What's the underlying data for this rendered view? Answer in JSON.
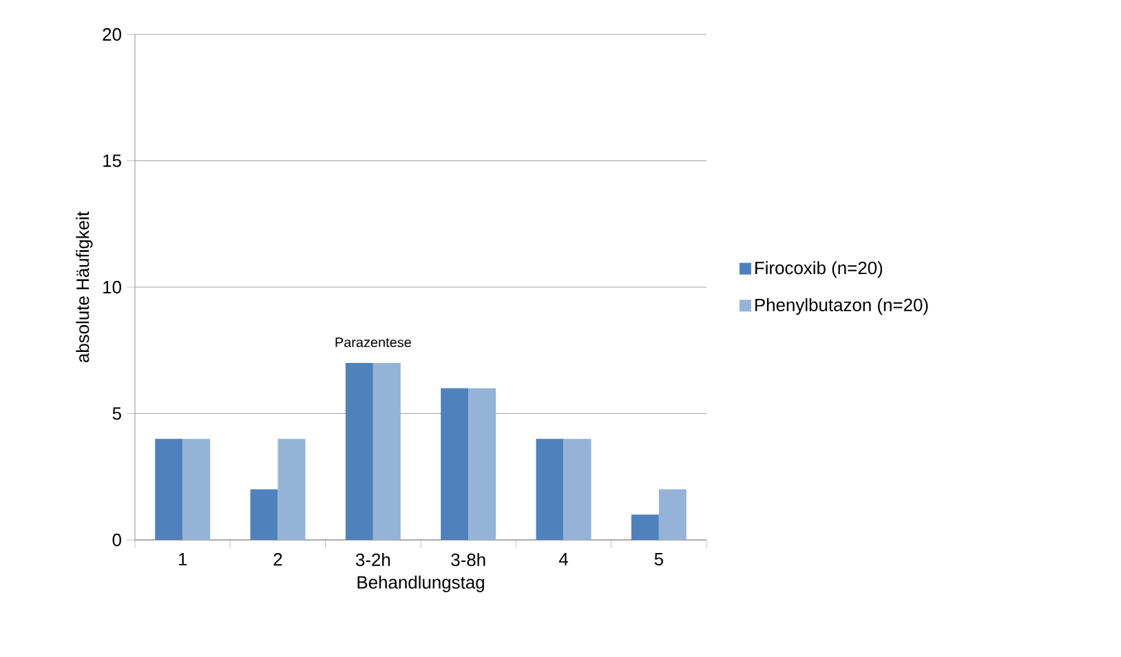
{
  "chart_data": {
    "type": "bar",
    "xlabel": "Behandlungstag",
    "ylabel": "absolute Häufigkeit",
    "categories": [
      "1",
      "2",
      "3-2h",
      "3-8h",
      "4",
      "5"
    ],
    "series": [
      {
        "name": "Firocoxib (n=20)",
        "color": "#4f81bd",
        "values": [
          4,
          2,
          7,
          6,
          4,
          1
        ]
      },
      {
        "name": "Phenylbutazon (n=20)",
        "color": "#95b3d7",
        "values": [
          4,
          4,
          7,
          6,
          4,
          2
        ]
      }
    ],
    "ylim": [
      0,
      20
    ],
    "yticks": [
      0,
      5,
      10,
      15,
      20
    ],
    "grid": "y",
    "legend": "right",
    "annotations": [
      "Parazentese"
    ]
  }
}
